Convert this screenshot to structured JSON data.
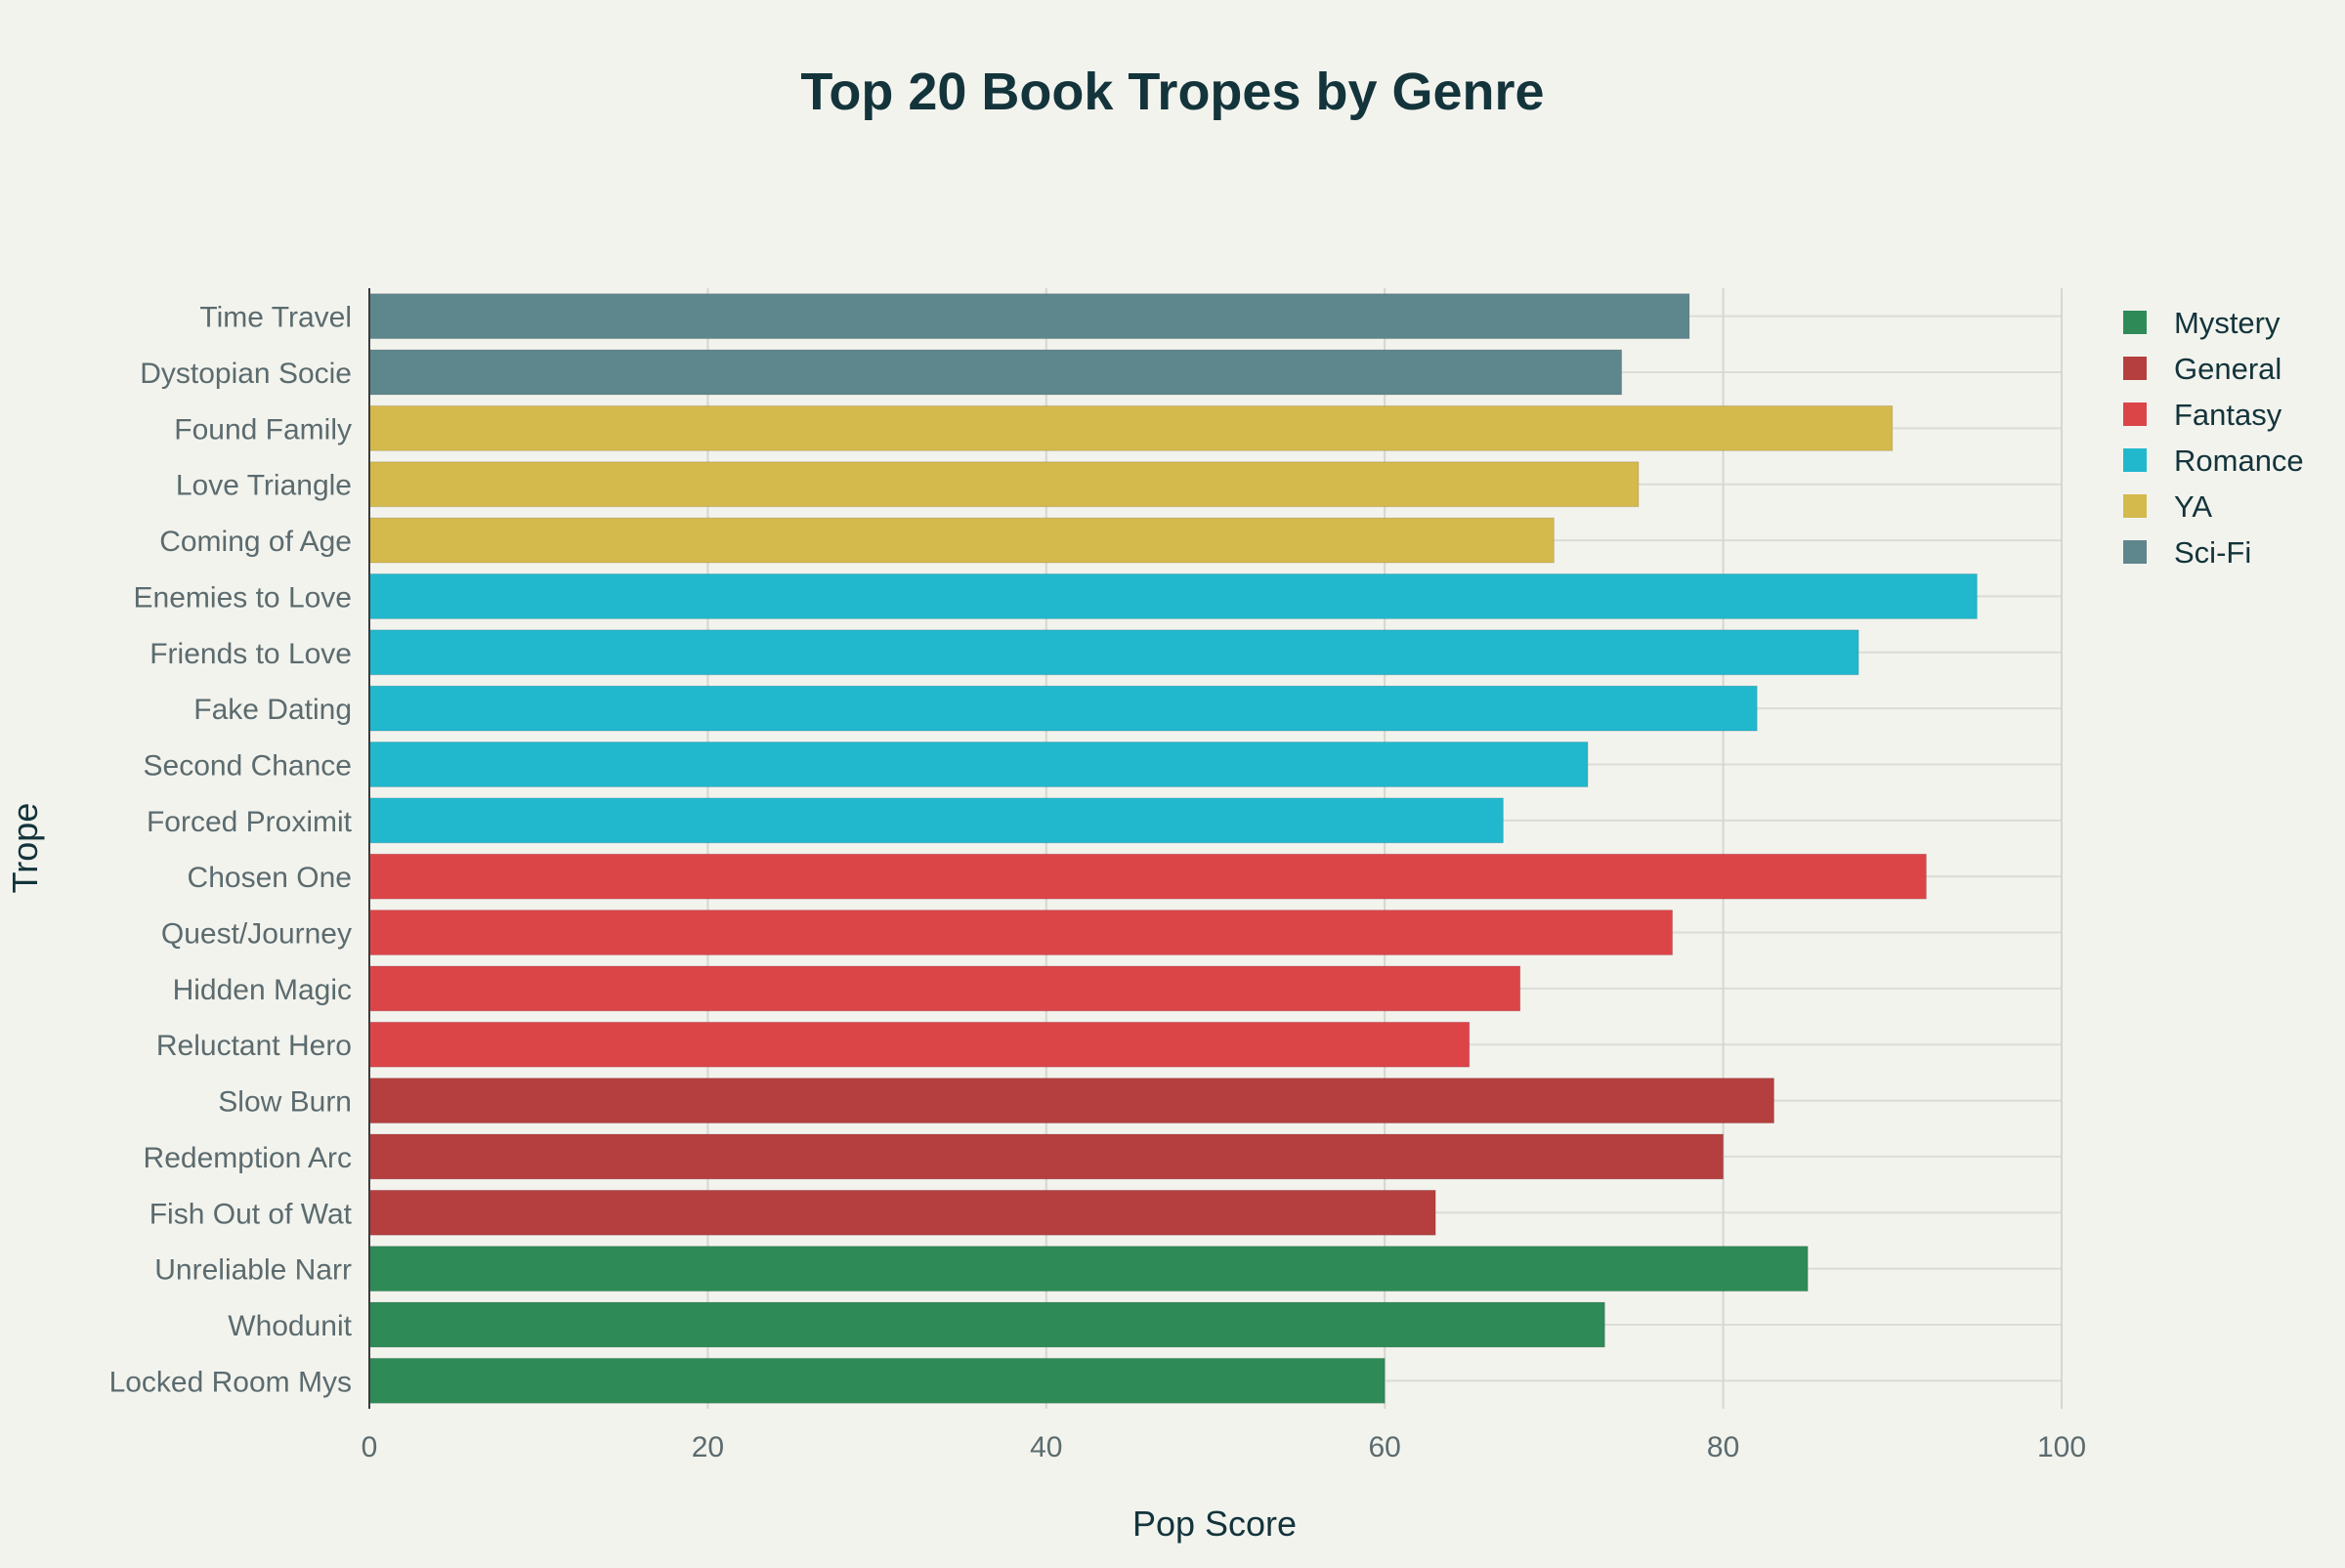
{
  "chart_data": {
    "type": "bar",
    "orientation": "horizontal",
    "title": "Top 20 Book Tropes by Genre",
    "xlabel": "Pop Score",
    "ylabel": "Trope",
    "xlim": [
      0,
      100
    ],
    "xticks": [
      0,
      20,
      40,
      60,
      80,
      100
    ],
    "grid": true,
    "legend_position": "top-right",
    "legend": [
      "Mystery",
      "General",
      "Fantasy",
      "Romance",
      "YA",
      "Sci-Fi"
    ],
    "colors": {
      "Mystery": "#2e8b57",
      "General": "#b53f3f",
      "Fantasy": "#dc4548",
      "Romance": "#21b8cd",
      "YA": "#d4b94d",
      "Sci-Fi": "#5e868d"
    },
    "bars": [
      {
        "label": "Time Travel",
        "value": 78,
        "genre": "Sci-Fi"
      },
      {
        "label": "Dystopian Socie",
        "value": 74,
        "genre": "Sci-Fi"
      },
      {
        "label": "Found Family",
        "value": 90,
        "genre": "YA"
      },
      {
        "label": "Love Triangle",
        "value": 75,
        "genre": "YA"
      },
      {
        "label": "Coming of Age",
        "value": 70,
        "genre": "YA"
      },
      {
        "label": "Enemies to Love",
        "value": 95,
        "genre": "Romance"
      },
      {
        "label": "Friends to Love",
        "value": 88,
        "genre": "Romance"
      },
      {
        "label": "Fake Dating",
        "value": 82,
        "genre": "Romance"
      },
      {
        "label": "Second Chance",
        "value": 72,
        "genre": "Romance"
      },
      {
        "label": "Forced Proximit",
        "value": 67,
        "genre": "Romance"
      },
      {
        "label": "Chosen One",
        "value": 92,
        "genre": "Fantasy"
      },
      {
        "label": "Quest/Journey",
        "value": 77,
        "genre": "Fantasy"
      },
      {
        "label": "Hidden Magic",
        "value": 68,
        "genre": "Fantasy"
      },
      {
        "label": "Reluctant Hero",
        "value": 65,
        "genre": "Fantasy"
      },
      {
        "label": "Slow Burn",
        "value": 83,
        "genre": "General"
      },
      {
        "label": "Redemption Arc",
        "value": 80,
        "genre": "General"
      },
      {
        "label": "Fish Out of Wat",
        "value": 63,
        "genre": "General"
      },
      {
        "label": "Unreliable Narr",
        "value": 85,
        "genre": "Mystery"
      },
      {
        "label": "Whodunit",
        "value": 73,
        "genre": "Mystery"
      },
      {
        "label": "Locked Room Mys",
        "value": 60,
        "genre": "Mystery"
      }
    ]
  }
}
